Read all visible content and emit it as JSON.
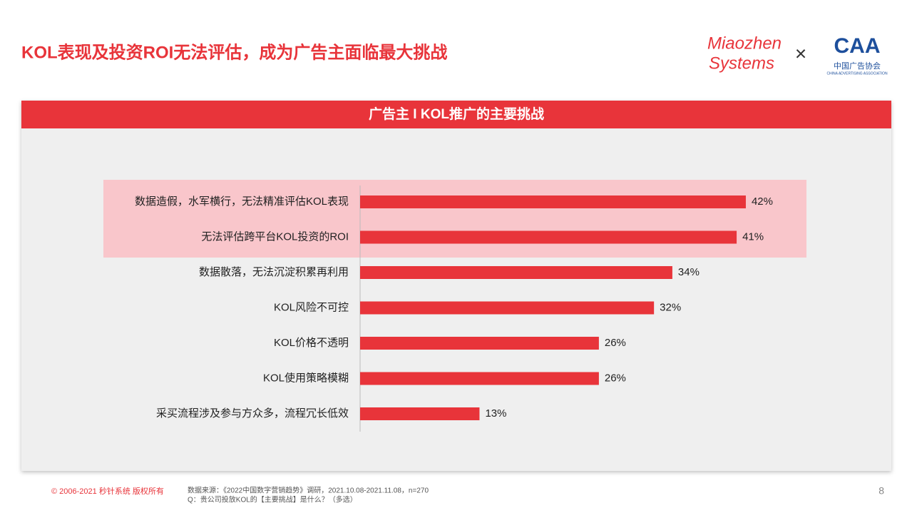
{
  "header": {
    "title": "KOL表现及投资ROI无法评估，成为广告主面临最大挑战",
    "logo_1": [
      "Miaozhen",
      "Systems"
    ],
    "separator": "×",
    "logo_2": "CAA",
    "logo_2_cn": "中国广告协会",
    "logo_2_en": "CHINA ADVERTISING ASSOCIATION"
  },
  "chart_data": {
    "type": "hbar",
    "title": "广告主 I KOL推广的主要挑战",
    "categories": [
      "数据造假，水军横行，无法精准评估KOL表现",
      "无法评估跨平台KOL投资的ROI",
      "数据散落，无法沉淀积累再利用",
      "KOL风险不可控",
      "KOL价格不透明",
      "KOL使用策略模糊",
      "采买流程涉及参与方众多，流程冗长低效"
    ],
    "values": [
      42,
      41,
      34,
      32,
      26,
      26,
      13
    ],
    "value_labels": [
      "42%",
      "41%",
      "34%",
      "32%",
      "26%",
      "26%",
      "13%"
    ],
    "color": "#e8343a"
  },
  "footer": {
    "copyright": "© 2006-2021 秒针系统 版权所有",
    "source": "数据来源：《2022中国数字营销趋势》调研，2021.10.08-2021.11.08，n=270",
    "question": "Q：贵公司投放KOL的【主要挑战】是什么？（多选）",
    "page": "8"
  }
}
